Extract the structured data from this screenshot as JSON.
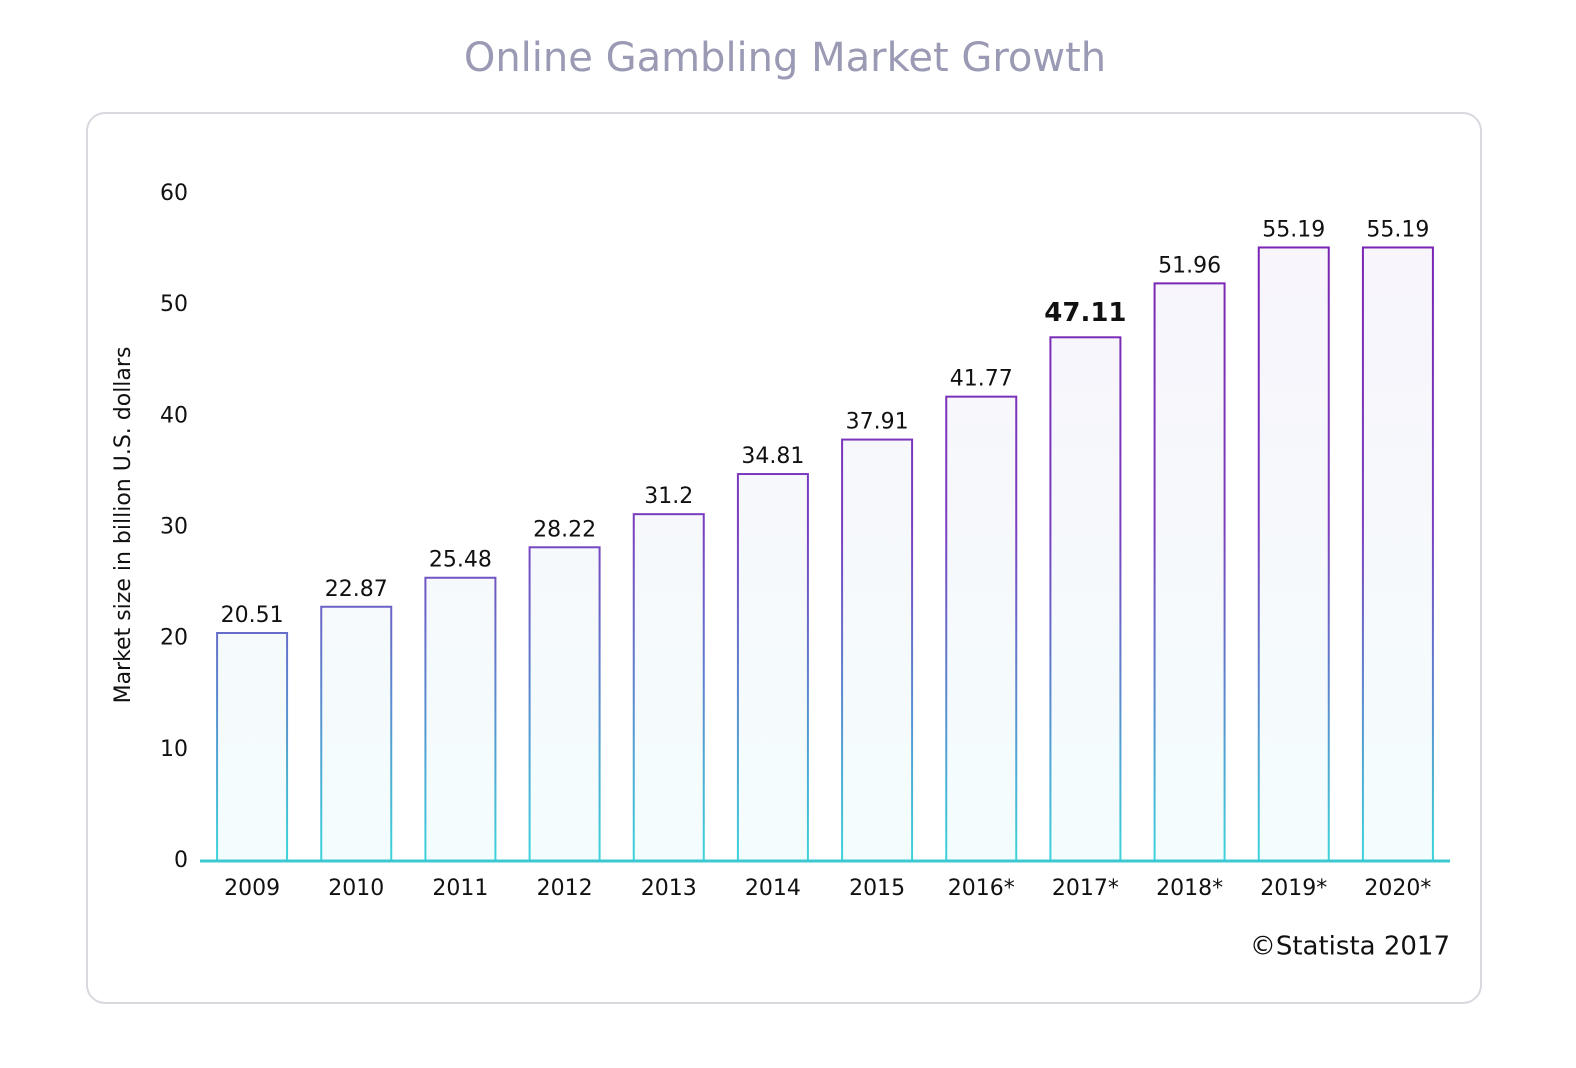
{
  "chart_data": {
    "type": "bar",
    "title": "Online Gambling Market Growth",
    "y_label": "Market size in billion U.S. dollars",
    "categories": [
      "2009",
      "2010",
      "2011",
      "2012",
      "2013",
      "2014",
      "2015",
      "2016*",
      "2017*",
      "2018*",
      "2019*",
      "2020*"
    ],
    "values": [
      20.51,
      22.87,
      25.48,
      28.22,
      31.2,
      34.81,
      37.91,
      41.77,
      47.11,
      51.96,
      55.19,
      55.19
    ],
    "highlight": "2017*",
    "ylim": [
      0,
      60
    ],
    "yticks": [
      0,
      10,
      20,
      30,
      40,
      50,
      60
    ],
    "grid": false,
    "color": "#7b1fb0",
    "axis_color": "#3cc8d0",
    "credit": "©Statista 2017"
  }
}
